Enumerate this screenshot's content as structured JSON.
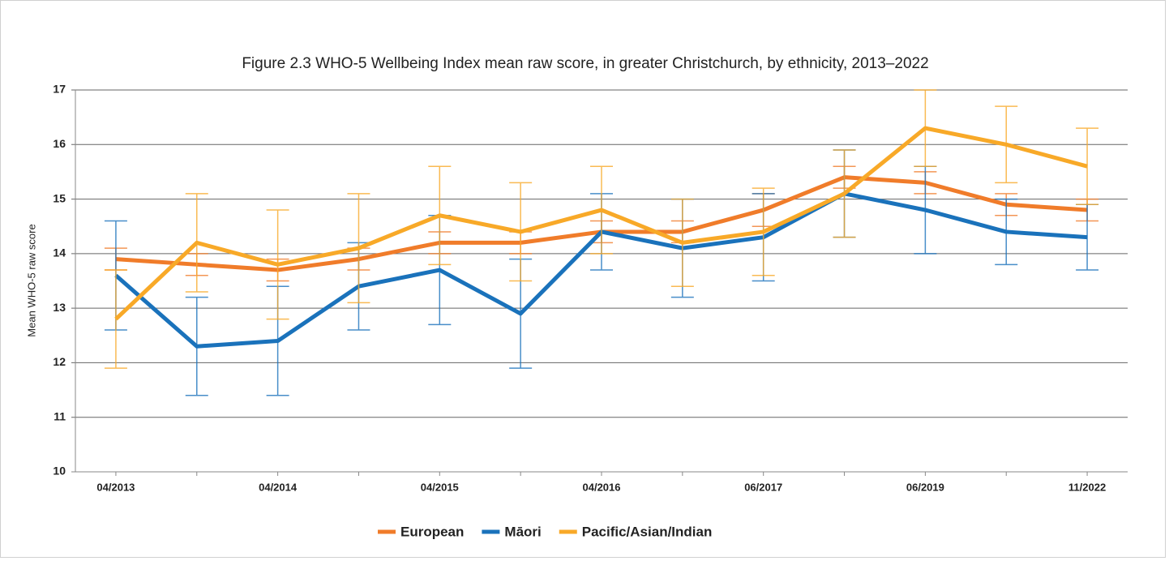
{
  "chart_data": {
    "type": "line",
    "title": "Figure 2.3 WHO-5 Wellbeing Index mean raw score, in greater Christchurch, by ethnicity, 2013–2022",
    "y_label": "Mean WHO-5 raw score",
    "categories": [
      "04/2013",
      null,
      "04/2014",
      null,
      "04/2015",
      null,
      "04/2016",
      null,
      "06/2017",
      null,
      "06/2019",
      null,
      "11/2022"
    ],
    "ylim": [
      10,
      17
    ],
    "yticks": [
      10,
      11,
      12,
      13,
      14,
      15,
      16,
      17
    ],
    "grid": true,
    "legend": "bottom",
    "series": [
      {
        "name": "European",
        "color": "#f07c2a",
        "values": [
          13.9,
          13.8,
          13.7,
          13.9,
          14.2,
          14.2,
          14.4,
          14.4,
          14.8,
          15.4,
          15.3,
          14.9,
          14.8
        ],
        "errors": [
          0.2,
          0.2,
          0.2,
          0.2,
          0.2,
          0.2,
          0.2,
          0.2,
          0.3,
          0.2,
          0.2,
          0.2,
          0.2
        ]
      },
      {
        "name": "Māori",
        "color": "#1a72bb",
        "values": [
          13.6,
          12.3,
          12.4,
          13.4,
          13.7,
          12.9,
          14.4,
          14.1,
          14.3,
          15.1,
          14.8,
          14.4,
          14.3
        ],
        "errors": [
          1.0,
          0.9,
          1.0,
          0.8,
          1.0,
          1.0,
          0.7,
          0.9,
          0.8,
          0.8,
          0.8,
          0.6,
          0.6
        ]
      },
      {
        "name": "Pacific/Asian/Indian",
        "color": "#f8a928",
        "values": [
          12.8,
          14.2,
          13.8,
          14.1,
          14.7,
          14.4,
          14.8,
          14.2,
          14.4,
          15.1,
          16.3,
          16.0,
          15.6
        ],
        "errors": [
          0.9,
          0.9,
          1.0,
          1.0,
          0.9,
          0.9,
          0.8,
          0.8,
          0.8,
          0.8,
          0.7,
          0.7,
          0.7
        ]
      }
    ]
  }
}
